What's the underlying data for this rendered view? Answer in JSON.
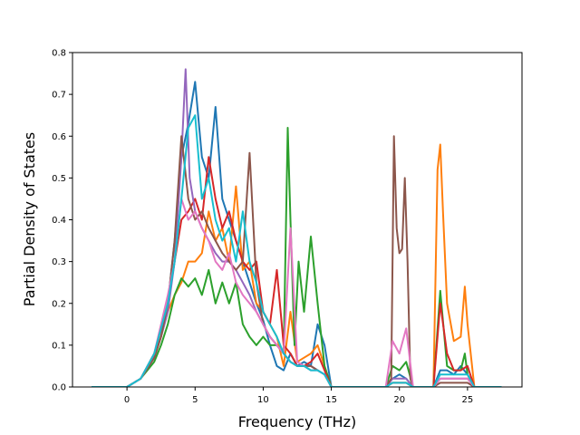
{
  "chart_data": {
    "type": "line",
    "title": "",
    "xlabel": "Frequency (THz)",
    "ylabel": "Partial Density of States",
    "xlim": [
      -4.0,
      29.0
    ],
    "ylim": [
      0.0,
      0.8
    ],
    "xticks": [
      0,
      5,
      10,
      15,
      20,
      25
    ],
    "yticks": [
      0.0,
      0.1,
      0.2,
      0.3,
      0.4,
      0.5,
      0.6,
      0.7,
      0.8
    ],
    "xtick_labels": [
      "0",
      "5",
      "10",
      "15",
      "20",
      "25"
    ],
    "ytick_labels": [
      "0.0",
      "0.1",
      "0.2",
      "0.3",
      "0.4",
      "0.5",
      "0.6",
      "0.7",
      "0.8"
    ],
    "grid": false,
    "legend": "none",
    "series": [
      {
        "color": "#1f77b4",
        "x": [
          -2.6,
          0,
          1,
          2,
          2.5,
          3,
          3.5,
          4,
          4.5,
          5,
          5.5,
          6,
          6.5,
          7,
          7.5,
          8,
          8.5,
          9,
          9.5,
          10,
          10.5,
          11,
          11.5,
          12,
          12.5,
          13,
          13.5,
          14,
          14.5,
          15,
          15.5,
          19,
          19.5,
          20,
          20.5,
          21,
          22.5,
          23,
          23.5,
          24,
          24.5,
          25,
          25.5,
          27.5
        ],
        "y": [
          0,
          0,
          0.02,
          0.07,
          0.12,
          0.2,
          0.35,
          0.55,
          0.63,
          0.73,
          0.55,
          0.5,
          0.67,
          0.45,
          0.4,
          0.35,
          0.3,
          0.25,
          0.2,
          0.16,
          0.1,
          0.05,
          0.04,
          0.08,
          0.05,
          0.06,
          0.05,
          0.15,
          0.1,
          0,
          0,
          0,
          0.02,
          0.03,
          0.02,
          0,
          0,
          0.04,
          0.04,
          0.03,
          0.05,
          0.03,
          0,
          0
        ]
      },
      {
        "color": "#ff7f0e",
        "x": [
          -2.6,
          0,
          1,
          2,
          2.5,
          3,
          3.5,
          4,
          4.5,
          5,
          5.5,
          6,
          6.5,
          7,
          7.5,
          8,
          8.5,
          9,
          9.5,
          10,
          10.5,
          11,
          11.5,
          12,
          12.5,
          13,
          13.5,
          14,
          14.5,
          15,
          15.5,
          19,
          19.5,
          20,
          20.5,
          21,
          22.5,
          22.8,
          23,
          23.2,
          23.5,
          24,
          24.5,
          24.8,
          25,
          25.5,
          27.5
        ],
        "y": [
          0,
          0,
          0.02,
          0.07,
          0.12,
          0.18,
          0.22,
          0.25,
          0.3,
          0.3,
          0.32,
          0.42,
          0.35,
          0.38,
          0.3,
          0.48,
          0.28,
          0.3,
          0.2,
          0.18,
          0.15,
          0.12,
          0.05,
          0.18,
          0.06,
          0.07,
          0.08,
          0.1,
          0.05,
          0,
          0,
          0,
          0.01,
          0.01,
          0.01,
          0,
          0,
          0.52,
          0.58,
          0.42,
          0.2,
          0.11,
          0.12,
          0.24,
          0.15,
          0,
          0
        ]
      },
      {
        "color": "#2ca02c",
        "x": [
          -2.6,
          0,
          1,
          2,
          2.5,
          3,
          3.5,
          4,
          4.5,
          5,
          5.5,
          6,
          6.5,
          7,
          7.5,
          8,
          8.5,
          9,
          9.5,
          10,
          10.5,
          11,
          11.5,
          11.8,
          12,
          12.3,
          12.6,
          13,
          13.5,
          14,
          14.5,
          15,
          15.5,
          19,
          19.5,
          20,
          20.5,
          21,
          22.5,
          23,
          23.5,
          24,
          24.5,
          24.8,
          25,
          25.5,
          27.5
        ],
        "y": [
          0,
          0,
          0.02,
          0.06,
          0.1,
          0.15,
          0.22,
          0.26,
          0.24,
          0.26,
          0.22,
          0.28,
          0.2,
          0.25,
          0.2,
          0.25,
          0.15,
          0.12,
          0.1,
          0.12,
          0.1,
          0.1,
          0.08,
          0.62,
          0.4,
          0.1,
          0.3,
          0.18,
          0.36,
          0.2,
          0.05,
          0,
          0,
          0,
          0.05,
          0.04,
          0.06,
          0,
          0,
          0.23,
          0.05,
          0.04,
          0.04,
          0.08,
          0.03,
          0,
          0
        ]
      },
      {
        "color": "#d62728",
        "x": [
          -2.6,
          0,
          1,
          2,
          2.5,
          3,
          3.5,
          4,
          4.5,
          5,
          5.5,
          6,
          6.5,
          7,
          7.5,
          8,
          8.5,
          9,
          9.5,
          10,
          10.5,
          11,
          11.5,
          12,
          12.5,
          13,
          13.5,
          14,
          14.5,
          15,
          15.5,
          19,
          19.5,
          20,
          20.5,
          21,
          22.5,
          23,
          23.5,
          24,
          24.5,
          25,
          25.5,
          27.5
        ],
        "y": [
          0,
          0,
          0.02,
          0.08,
          0.14,
          0.2,
          0.3,
          0.4,
          0.42,
          0.45,
          0.4,
          0.55,
          0.45,
          0.38,
          0.42,
          0.35,
          0.3,
          0.28,
          0.3,
          0.18,
          0.15,
          0.28,
          0.1,
          0.08,
          0.05,
          0.05,
          0.06,
          0.08,
          0.04,
          0,
          0,
          0,
          0.01,
          0.01,
          0.01,
          0,
          0,
          0.2,
          0.08,
          0.04,
          0.04,
          0.05,
          0,
          0
        ]
      },
      {
        "color": "#9467bd",
        "x": [
          -2.6,
          0,
          1,
          2,
          2.5,
          3,
          3.5,
          4,
          4.3,
          4.6,
          5,
          5.5,
          6,
          6.5,
          7,
          7.5,
          8,
          8.5,
          9,
          9.5,
          10,
          10.5,
          11,
          11.5,
          12,
          12.5,
          13,
          13.5,
          14,
          14.5,
          15,
          15.5,
          19,
          19.5,
          20,
          20.5,
          21,
          22.5,
          23,
          23.5,
          24,
          24.5,
          25,
          25.5,
          27.5
        ],
        "y": [
          0,
          0,
          0.02,
          0.07,
          0.12,
          0.18,
          0.3,
          0.55,
          0.76,
          0.5,
          0.42,
          0.38,
          0.35,
          0.32,
          0.3,
          0.3,
          0.28,
          0.25,
          0.22,
          0.18,
          0.15,
          0.12,
          0.1,
          0.08,
          0.06,
          0.05,
          0.05,
          0.05,
          0.04,
          0.03,
          0,
          0,
          0,
          0.02,
          0.02,
          0.02,
          0,
          0,
          0.02,
          0.02,
          0.02,
          0.02,
          0.02,
          0,
          0
        ]
      },
      {
        "color": "#8c564b",
        "x": [
          -2.6,
          0,
          1,
          2,
          2.5,
          3,
          3.5,
          4,
          4.5,
          5,
          5.5,
          6,
          6.5,
          7,
          7.5,
          8,
          8.5,
          9,
          9.5,
          10,
          10.5,
          11,
          11.5,
          12,
          12.5,
          13,
          13.5,
          14,
          14.5,
          15,
          15.5,
          19,
          19.4,
          19.6,
          19.8,
          20,
          20.2,
          20.4,
          20.6,
          20.8,
          21,
          22.5,
          23,
          23.5,
          24,
          24.5,
          25,
          25.5,
          27.5
        ],
        "y": [
          0,
          0,
          0.02,
          0.07,
          0.12,
          0.2,
          0.35,
          0.6,
          0.45,
          0.4,
          0.42,
          0.38,
          0.35,
          0.32,
          0.3,
          0.28,
          0.3,
          0.56,
          0.25,
          0.15,
          0.12,
          0.1,
          0.08,
          0.06,
          0.05,
          0.05,
          0.05,
          0.04,
          0.03,
          0,
          0,
          0,
          0.02,
          0.6,
          0.38,
          0.32,
          0.33,
          0.5,
          0.3,
          0.02,
          0,
          0,
          0.01,
          0.01,
          0.01,
          0.01,
          0.01,
          0,
          0
        ]
      },
      {
        "color": "#e377c2",
        "x": [
          -2.6,
          0,
          1,
          2,
          2.5,
          3,
          3.5,
          4,
          4.5,
          5,
          5.5,
          6,
          6.5,
          7,
          7.5,
          8,
          8.5,
          9,
          9.5,
          10,
          10.5,
          11,
          11.5,
          12,
          12.5,
          13,
          13.5,
          14,
          14.5,
          15,
          15.5,
          19,
          19.5,
          20,
          20.5,
          21,
          22.5,
          23,
          23.5,
          24,
          24.5,
          25,
          25.5,
          27.5
        ],
        "y": [
          0,
          0,
          0.02,
          0.08,
          0.15,
          0.22,
          0.3,
          0.45,
          0.4,
          0.42,
          0.38,
          0.35,
          0.3,
          0.28,
          0.32,
          0.25,
          0.22,
          0.2,
          0.18,
          0.15,
          0.12,
          0.1,
          0.08,
          0.38,
          0.06,
          0.05,
          0.04,
          0.04,
          0.03,
          0,
          0,
          0,
          0.11,
          0.08,
          0.14,
          0,
          0,
          0.02,
          0.02,
          0.02,
          0.02,
          0.02,
          0,
          0
        ]
      },
      {
        "color": "#17becf",
        "x": [
          -2.6,
          0,
          1,
          2,
          2.5,
          3,
          3.5,
          4,
          4.5,
          5,
          5.5,
          6,
          6.5,
          7,
          7.5,
          8,
          8.5,
          9,
          9.5,
          10,
          10.5,
          11,
          11.5,
          12,
          12.5,
          13,
          13.5,
          14,
          14.5,
          15,
          15.5,
          19,
          19.5,
          20,
          20.5,
          21,
          22.5,
          23,
          23.5,
          24,
          24.5,
          25,
          25.5,
          27.5
        ],
        "y": [
          0,
          0,
          0.02,
          0.08,
          0.14,
          0.2,
          0.3,
          0.45,
          0.62,
          0.65,
          0.45,
          0.5,
          0.4,
          0.35,
          0.38,
          0.3,
          0.42,
          0.3,
          0.25,
          0.18,
          0.15,
          0.12,
          0.08,
          0.06,
          0.05,
          0.05,
          0.04,
          0.04,
          0.03,
          0,
          0,
          0,
          0.01,
          0.01,
          0.01,
          0,
          0,
          0.03,
          0.03,
          0.03,
          0.03,
          0.03,
          0,
          0
        ]
      }
    ]
  }
}
